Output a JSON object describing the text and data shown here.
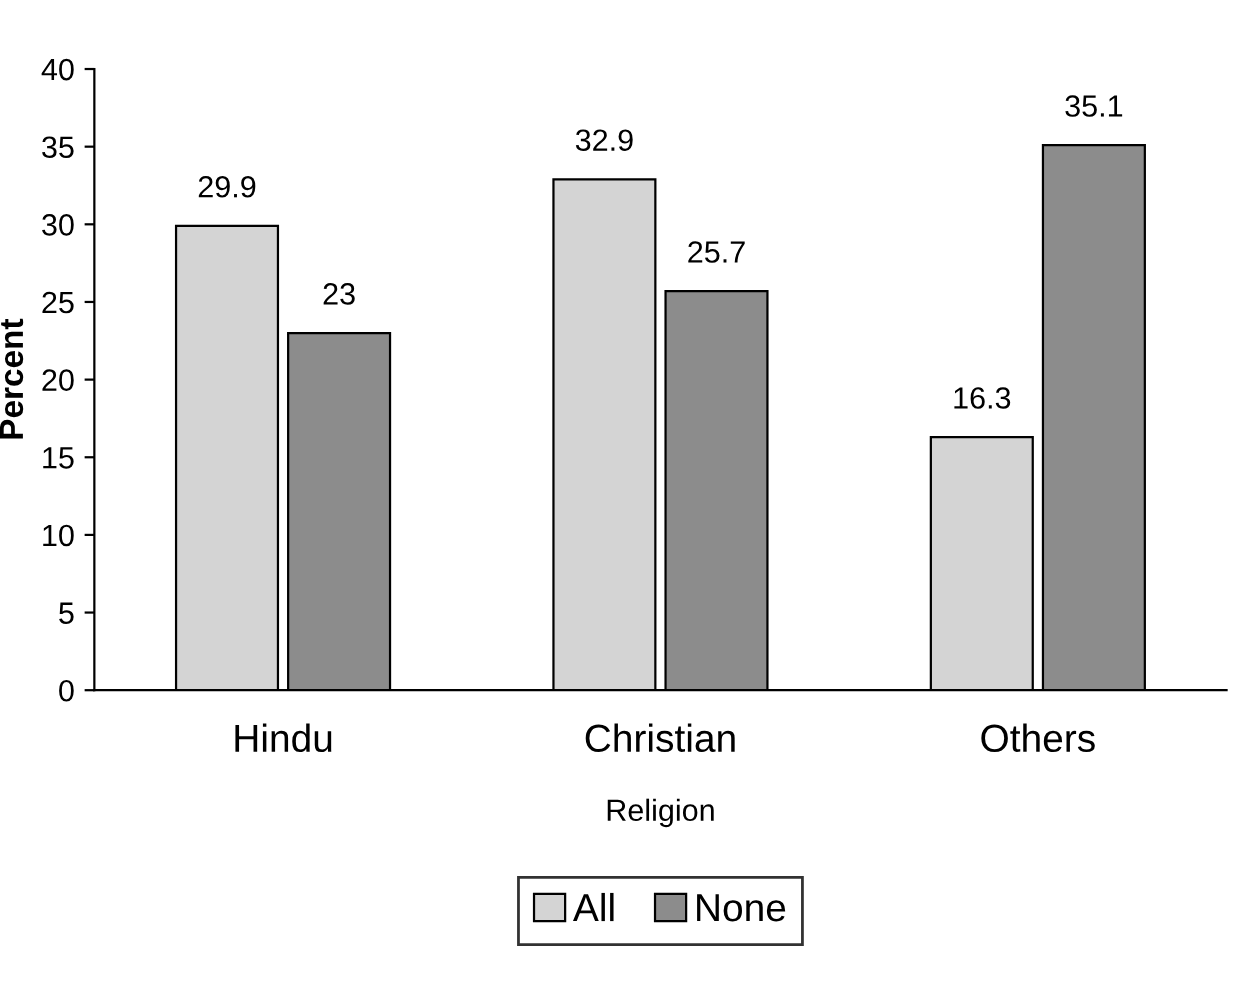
{
  "chart_data": {
    "type": "bar",
    "xlabel": "Religion",
    "ylabel": "Percent",
    "categories": [
      "Hindu",
      "Christian",
      "Others"
    ],
    "series": [
      {
        "name": "All",
        "color": "#d4d4d4",
        "values": [
          29.9,
          32.9,
          16.3
        ]
      },
      {
        "name": "None",
        "color": "#8c8c8c",
        "values": [
          23,
          25.7,
          35.1
        ]
      }
    ],
    "ylim": [
      0,
      40
    ],
    "yticks": [
      0,
      5,
      10,
      15,
      20,
      25,
      30,
      35,
      40
    ],
    "data_labels": true,
    "legend": "bottom",
    "grid": false
  }
}
